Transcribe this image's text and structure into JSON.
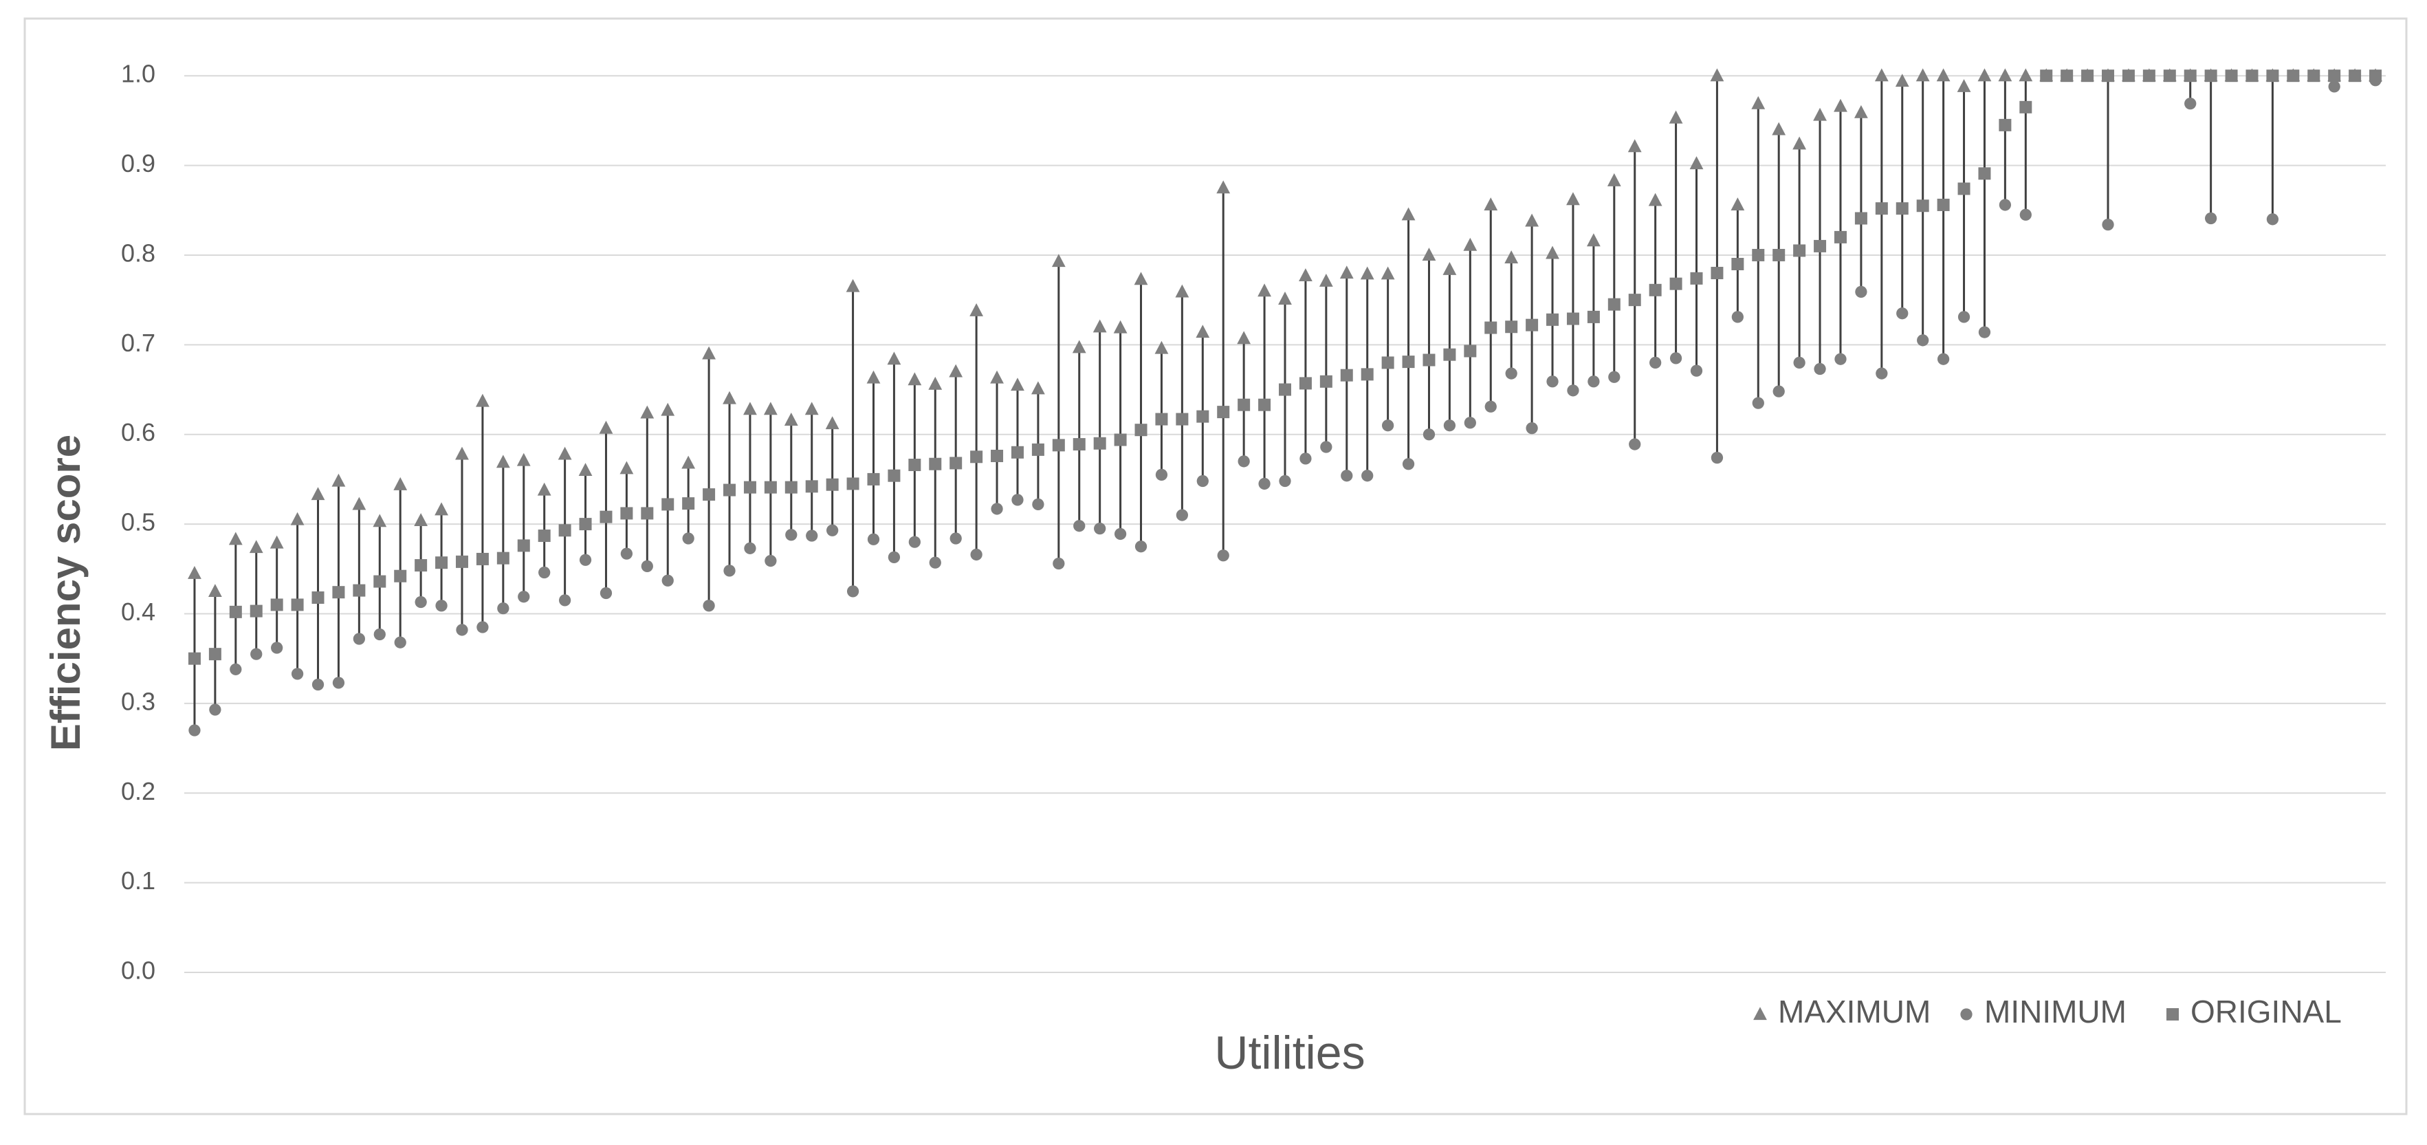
{
  "chart_data": {
    "type": "range-dot",
    "y_label": "Efficiency score",
    "x_label": "Utilities",
    "categories": [
      null,
      null,
      null,
      null,
      null,
      null,
      null,
      null,
      null,
      null,
      null,
      null,
      null,
      null,
      null,
      null,
      null,
      null,
      null,
      null,
      null,
      null,
      null,
      null,
      null,
      null,
      null,
      null,
      null,
      null,
      null,
      null,
      null,
      null,
      null,
      null,
      null,
      null,
      null,
      null,
      null,
      null,
      null,
      null,
      null,
      null,
      null,
      null,
      null,
      null,
      null,
      null,
      null,
      null,
      null,
      null,
      null,
      null,
      null,
      null,
      null,
      null,
      null,
      null,
      null,
      null,
      null,
      null,
      null,
      null,
      null,
      null,
      null,
      null,
      null,
      null,
      null,
      null,
      null,
      null,
      null,
      null,
      null,
      null,
      null,
      null,
      null,
      null,
      null,
      null,
      null,
      null,
      null,
      null,
      null,
      null,
      null,
      null,
      null,
      null,
      null,
      null,
      null,
      null,
      null,
      null,
      null
    ],
    "ylim": [
      0,
      1.05
    ],
    "yticks": [
      {
        "value": 0,
        "label": "0.0"
      },
      {
        "value": 0.1,
        "label": "0.1"
      },
      {
        "value": 0.2,
        "label": "0.2"
      },
      {
        "value": 0.3,
        "label": "0.3"
      },
      {
        "value": 0.4,
        "label": "0.4"
      },
      {
        "value": 0.5,
        "label": "0.5"
      },
      {
        "value": 0.6,
        "label": "0.6"
      },
      {
        "value": 0.7,
        "label": "0.7"
      },
      {
        "value": 0.8,
        "label": "0.8"
      },
      {
        "value": 0.9,
        "label": "0.9"
      },
      {
        "value": 1,
        "label": "1.0"
      }
    ],
    "grid": true,
    "legend": "bottom-right",
    "range_line_color": "#404040",
    "series": [
      {
        "name": "MAXIMUM",
        "color": "#7f7f7f",
        "marker": "triangle",
        "values": [
          0.445,
          0.425,
          0.483,
          0.474,
          0.479,
          0.505,
          0.533,
          0.548,
          0.522,
          0.503,
          0.544,
          0.504,
          0.516,
          0.578,
          0.637,
          0.569,
          0.571,
          0.538,
          0.578,
          0.56,
          0.607,
          0.562,
          0.624,
          0.627,
          0.568,
          0.69,
          0.64,
          0.628,
          0.628,
          0.616,
          0.628,
          0.612,
          0.765,
          0.663,
          0.684,
          0.661,
          0.656,
          0.67,
          0.738,
          0.663,
          0.655,
          0.651,
          0.793,
          0.697,
          0.72,
          0.719,
          0.773,
          0.696,
          0.759,
          0.714,
          0.875,
          0.707,
          0.76,
          0.751,
          0.777,
          0.771,
          0.78,
          0.779,
          0.779,
          0.845,
          0.8,
          0.784,
          0.811,
          0.856,
          0.797,
          0.838,
          0.802,
          0.862,
          0.816,
          0.883,
          0.921,
          0.861,
          0.953,
          0.902,
          1,
          0.856,
          0.969,
          0.94,
          0.924,
          0.956,
          0.966,
          0.959,
          1,
          0.994,
          1,
          1,
          0.988,
          1,
          1,
          1,
          1,
          1,
          1,
          1,
          1,
          1,
          1,
          1,
          1,
          1,
          1,
          1,
          1,
          1,
          1,
          1,
          1
        ]
      },
      {
        "name": "MINIMUM",
        "color": "#7f7f7f",
        "marker": "circle",
        "values": [
          0.27,
          0.293,
          0.338,
          0.355,
          0.362,
          0.333,
          0.321,
          0.323,
          0.372,
          0.377,
          0.368,
          0.413,
          0.409,
          0.382,
          0.385,
          0.406,
          0.419,
          0.446,
          0.415,
          0.46,
          0.423,
          0.467,
          0.453,
          0.437,
          0.484,
          0.409,
          0.448,
          0.473,
          0.459,
          0.488,
          0.487,
          0.493,
          0.425,
          0.483,
          0.463,
          0.48,
          0.457,
          0.484,
          0.466,
          0.517,
          0.527,
          0.522,
          0.456,
          0.498,
          0.495,
          0.489,
          0.475,
          0.555,
          0.51,
          0.548,
          0.465,
          0.57,
          0.545,
          0.548,
          0.573,
          0.586,
          0.554,
          0.554,
          0.61,
          0.567,
          0.6,
          0.61,
          0.613,
          0.631,
          0.668,
          0.607,
          0.659,
          0.649,
          0.659,
          0.664,
          0.589,
          0.68,
          0.685,
          0.671,
          0.574,
          0.731,
          0.635,
          0.648,
          0.68,
          0.673,
          0.684,
          0.759,
          0.668,
          0.735,
          0.705,
          0.684,
          0.731,
          0.714,
          0.856,
          0.845,
          1,
          1,
          1,
          0.834,
          1,
          1,
          1,
          0.969,
          0.841,
          1,
          1,
          0.84,
          1,
          1,
          0.988,
          1,
          0.995
        ]
      },
      {
        "name": "ORIGINAL",
        "color": "#7f7f7f",
        "marker": "square",
        "values": [
          0.35,
          0.355,
          0.402,
          0.403,
          0.41,
          0.41,
          0.418,
          0.424,
          0.426,
          0.436,
          0.442,
          0.454,
          0.457,
          0.458,
          0.461,
          0.462,
          0.476,
          0.487,
          0.493,
          0.5,
          0.508,
          0.512,
          0.512,
          0.522,
          0.523,
          0.533,
          0.538,
          0.541,
          0.541,
          0.541,
          0.542,
          0.544,
          0.545,
          0.55,
          0.554,
          0.566,
          0.567,
          0.568,
          0.575,
          0.576,
          0.58,
          0.583,
          0.588,
          0.589,
          0.59,
          0.594,
          0.605,
          0.617,
          0.617,
          0.62,
          0.625,
          0.633,
          0.633,
          0.65,
          0.657,
          0.659,
          0.666,
          0.667,
          0.68,
          0.681,
          0.683,
          0.689,
          0.693,
          0.719,
          0.72,
          0.722,
          0.728,
          0.729,
          0.731,
          0.745,
          0.75,
          0.761,
          0.768,
          0.774,
          0.78,
          0.79,
          0.8,
          0.8,
          0.805,
          0.81,
          0.82,
          0.841,
          0.852,
          0.852,
          0.855,
          0.856,
          0.874,
          0.891,
          0.945,
          0.965,
          1,
          1,
          1,
          1,
          1,
          1,
          1,
          1,
          1,
          1,
          1,
          1,
          1,
          1,
          1,
          1,
          1
        ]
      }
    ]
  }
}
